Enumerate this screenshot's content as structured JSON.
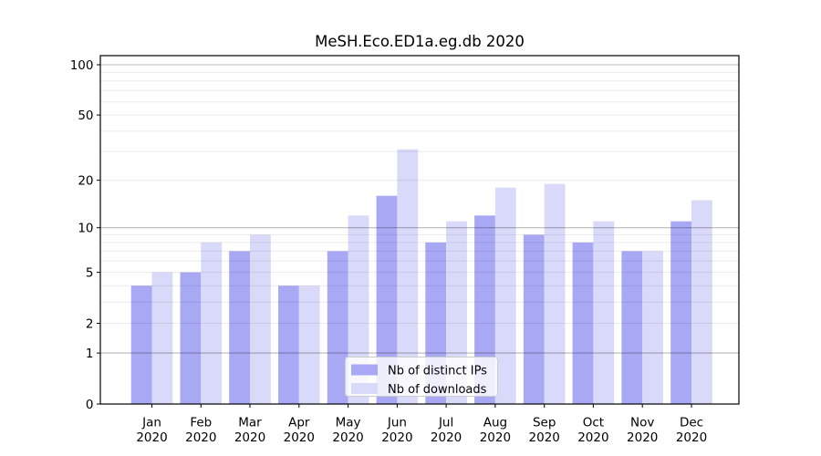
{
  "chart_data": {
    "type": "bar",
    "title": "MeSH.Eco.ED1a.eg.db 2020",
    "y_scale": "log1p",
    "ylim": [
      0,
      113.4
    ],
    "grid": "on",
    "legend_position": "lower center",
    "x_year_label": "2020",
    "categories": [
      "Jan",
      "Feb",
      "Mar",
      "Apr",
      "May",
      "Jun",
      "Jul",
      "Aug",
      "Sep",
      "Oct",
      "Nov",
      "Dec"
    ],
    "series": [
      {
        "name": "Nb of distinct IPs",
        "color": "#a8a8f5",
        "values": [
          4,
          5,
          7,
          4,
          7,
          16,
          8,
          12,
          9,
          8,
          7,
          11
        ]
      },
      {
        "name": "Nb of downloads",
        "color": "#d9d9fa",
        "values": [
          5,
          8,
          9,
          4,
          12,
          31,
          11,
          18,
          19,
          11,
          7,
          15
        ]
      }
    ],
    "y_tick_labels": [
      100,
      50,
      20,
      10,
      5,
      2,
      1,
      0
    ],
    "y_gridlines_major": [
      1,
      10,
      100
    ],
    "y_gridlines_minor": [
      2,
      3,
      4,
      5,
      6,
      7,
      8,
      9,
      20,
      30,
      40,
      50,
      60,
      70,
      80,
      90
    ],
    "colors": {
      "background": "#ffffff",
      "spine": "#000000",
      "text": "#000000",
      "grid_major": "rgba(0,0,0,0.28)",
      "grid_minor": "rgba(0,0,0,0.08)",
      "legend_bg": "rgba(255,255,255,0.8)",
      "legend_border": "#cccccc"
    }
  }
}
